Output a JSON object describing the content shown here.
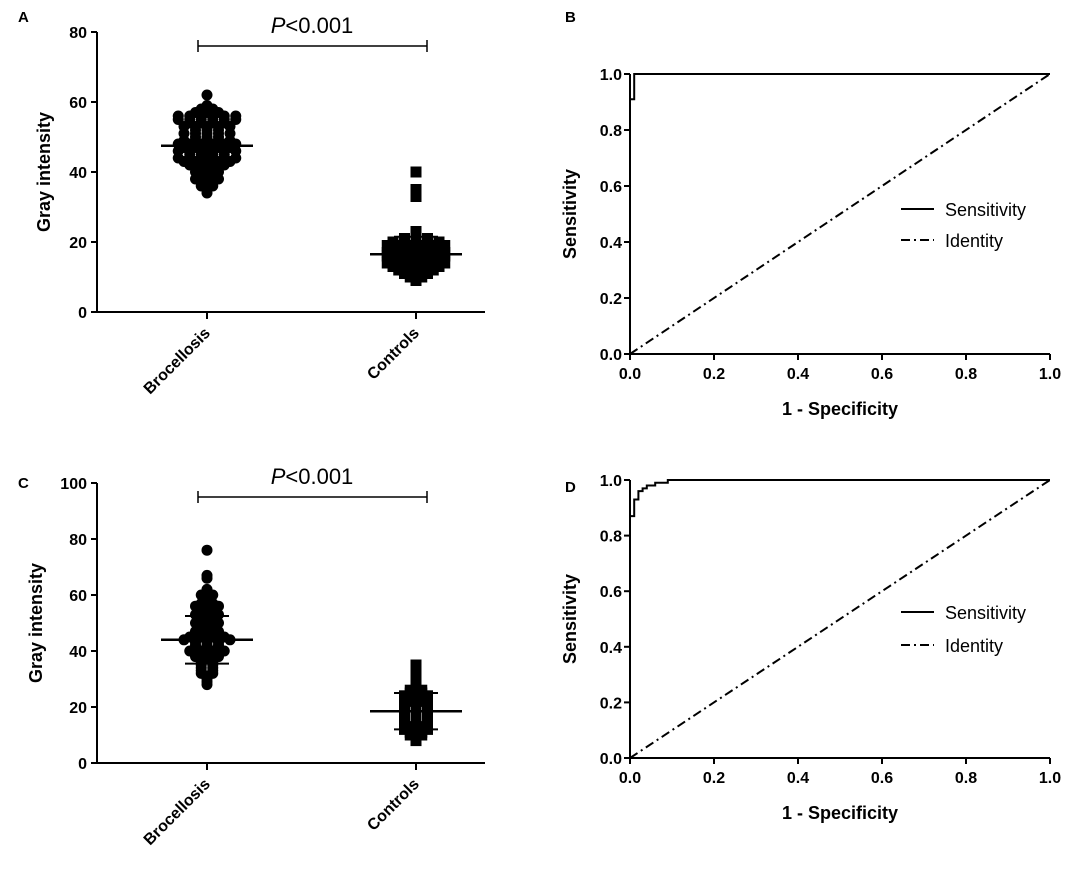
{
  "chart_data": [
    {
      "panel": "A",
      "type": "scatter",
      "ylabel": "Gray intensity",
      "ylim": [
        0,
        80
      ],
      "yticks": [
        0,
        20,
        40,
        60,
        80
      ],
      "categories": [
        "Brocellosis",
        "Controls"
      ],
      "annotation": {
        "italic": "P",
        "rest": "<0.001"
      },
      "series": [
        {
          "name": "Brocellosis",
          "marker": "circle",
          "mean": 47.5,
          "sd": 6.0,
          "values": [
            62,
            59,
            58,
            58,
            57,
            57,
            57,
            56,
            56,
            56,
            56,
            56,
            56,
            55,
            55,
            55,
            55,
            55,
            55,
            54,
            54,
            54,
            54,
            53,
            53,
            53,
            53,
            53,
            52,
            52,
            52,
            51,
            51,
            51,
            51,
            51,
            50,
            50,
            50,
            49,
            49,
            49,
            49,
            49,
            48,
            48,
            48,
            48,
            48,
            48,
            47,
            47,
            47,
            47,
            47,
            46,
            46,
            46,
            46,
            46,
            46,
            45,
            45,
            45,
            45,
            44,
            44,
            44,
            44,
            44,
            44,
            43,
            43,
            43,
            43,
            43,
            42,
            42,
            42,
            42,
            41,
            41,
            41,
            40,
            40,
            40,
            39,
            39,
            38,
            38,
            38,
            37,
            37,
            36,
            36,
            35,
            34
          ]
        },
        {
          "name": "Controls",
          "marker": "square",
          "mean": 16.5,
          "sd": 5.0,
          "values": [
            40,
            35,
            33,
            23,
            22,
            21,
            21,
            21,
            20,
            20,
            20,
            20,
            20,
            19,
            19,
            19,
            19,
            19,
            19,
            18,
            18,
            18,
            18,
            18,
            17,
            17,
            17,
            17,
            17,
            17,
            16,
            16,
            16,
            16,
            16,
            16,
            15,
            15,
            15,
            15,
            15,
            14,
            14,
            14,
            14,
            14,
            14,
            13,
            13,
            13,
            13,
            13,
            12,
            12,
            12,
            12,
            11,
            11,
            11,
            10,
            10,
            9
          ]
        }
      ]
    },
    {
      "panel": "B",
      "type": "line",
      "xlabel": "1 - Specificity",
      "ylabel": "Sensitivity",
      "xlim": [
        0,
        1
      ],
      "ylim": [
        0,
        1
      ],
      "xticks": [
        "0.0",
        "0.2",
        "0.4",
        "0.6",
        "0.8",
        "1.0"
      ],
      "yticks": [
        "0.0",
        "0.2",
        "0.4",
        "0.6",
        "0.8",
        "1.0"
      ],
      "series": [
        {
          "name": "Sensitivity",
          "style": "solid",
          "x": [
            0,
            0,
            0.01,
            0.01,
            1
          ],
          "y": [
            0,
            0.91,
            0.91,
            1,
            1
          ]
        },
        {
          "name": "Identity",
          "style": "dash-dot",
          "x": [
            0,
            1
          ],
          "y": [
            0,
            1
          ]
        }
      ]
    },
    {
      "panel": "C",
      "type": "scatter",
      "ylabel": "Gray intensity",
      "ylim": [
        0,
        100
      ],
      "yticks": [
        0,
        20,
        40,
        60,
        80,
        100
      ],
      "categories": [
        "Brocellosis",
        "Controls"
      ],
      "annotation": {
        "italic": "P",
        "rest": "<0.001"
      },
      "series": [
        {
          "name": "Brocellosis",
          "marker": "circle",
          "mean": 44,
          "sd": 8.5,
          "values": [
            76,
            67,
            66,
            62,
            60,
            60,
            59,
            58,
            57,
            57,
            56,
            56,
            56,
            55,
            55,
            54,
            54,
            53,
            53,
            53,
            52,
            52,
            51,
            51,
            50,
            50,
            50,
            49,
            49,
            48,
            48,
            47,
            47,
            47,
            46,
            46,
            46,
            45,
            45,
            45,
            45,
            44,
            44,
            44,
            44,
            44,
            43,
            43,
            43,
            42,
            42,
            42,
            41,
            41,
            41,
            40,
            40,
            40,
            40,
            39,
            39,
            38,
            38,
            38,
            37,
            37,
            36,
            36,
            35,
            35,
            34,
            34,
            33,
            33,
            32,
            32,
            31,
            30,
            29,
            28
          ]
        },
        {
          "name": "Controls",
          "marker": "square",
          "mean": 18.5,
          "sd": 6.5,
          "values": [
            35,
            33,
            31,
            30,
            28,
            27,
            26,
            26,
            25,
            25,
            24,
            24,
            24,
            23,
            23,
            22,
            22,
            21,
            21,
            21,
            20,
            20,
            20,
            19,
            19,
            19,
            18,
            18,
            18,
            17,
            17,
            17,
            16,
            16,
            16,
            15,
            15,
            15,
            14,
            14,
            14,
            13,
            13,
            12,
            12,
            12,
            11,
            11,
            10,
            10,
            9,
            8
          ]
        }
      ]
    },
    {
      "panel": "D",
      "type": "line",
      "xlabel": "1 - Specificity",
      "ylabel": "Sensitivity",
      "xlim": [
        0,
        1
      ],
      "ylim": [
        0,
        1
      ],
      "xticks": [
        "0.0",
        "0.2",
        "0.4",
        "0.6",
        "0.8",
        "1.0"
      ],
      "yticks": [
        "0.0",
        "0.2",
        "0.4",
        "0.6",
        "0.8",
        "1.0"
      ],
      "series": [
        {
          "name": "Sensitivity",
          "style": "solid",
          "x": [
            0,
            0,
            0.01,
            0.01,
            0.02,
            0.02,
            0.03,
            0.03,
            0.04,
            0.04,
            0.06,
            0.06,
            0.09,
            0.09,
            1
          ],
          "y": [
            0,
            0.87,
            0.87,
            0.93,
            0.93,
            0.96,
            0.96,
            0.97,
            0.97,
            0.98,
            0.98,
            0.99,
            0.99,
            1,
            1
          ]
        },
        {
          "name": "Identity",
          "style": "dash-dot",
          "x": [
            0,
            1
          ],
          "y": [
            0,
            1
          ]
        }
      ]
    }
  ]
}
